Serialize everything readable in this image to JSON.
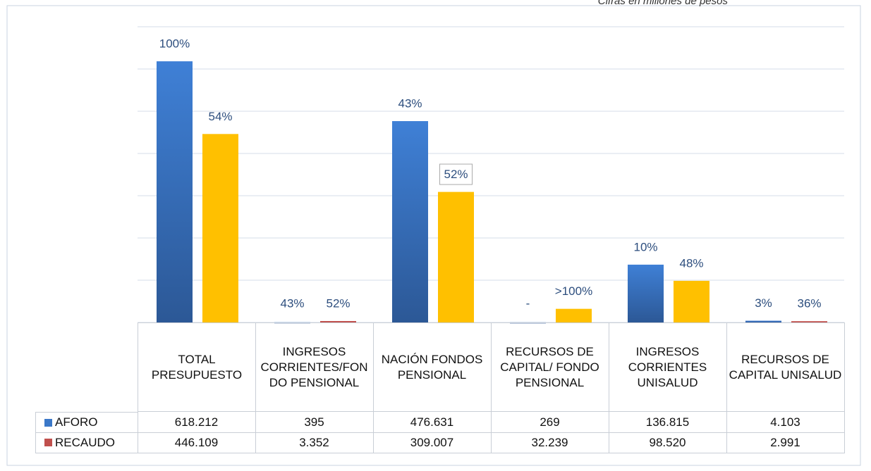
{
  "chart_data": {
    "type": "bar",
    "subtitle": "Cifras en millones de pesos",
    "categories": [
      "TOTAL PRESUPUESTO",
      "INGRESOS CORRIENTES/FONDO PENSIONAL",
      "NACIÓN FONDOS PENSIONAL",
      "RECURSOS DE CAPITAL/ FONDO PENSIONAL",
      "INGRESOS CORRIENTES UNISALUD",
      "RECURSOS DE CAPITAL UNISALUD"
    ],
    "series": [
      {
        "name": "AFORO",
        "color": "#3b78c8",
        "colors": [
          "#3b78c8",
          "#3b78c8",
          "#3b78c8",
          "#3b78c8",
          "#3b78c8",
          "#3b78c8"
        ],
        "values": [
          618212,
          395,
          476631,
          269,
          136815,
          4103
        ],
        "value_labels": [
          "618.212",
          "395",
          "476.631",
          "269",
          "136.815",
          "4.103"
        ],
        "bar_labels": [
          "100%",
          "43%",
          "43%",
          "-",
          "10%",
          "3%"
        ]
      },
      {
        "name": "RECAUDO",
        "color": "#c0504d",
        "colors": [
          "#ffc000",
          "#c0504d",
          "#ffc000",
          "#ffc000",
          "#ffc000",
          "#c0504d"
        ],
        "values": [
          446109,
          3352,
          309007,
          32239,
          98520,
          2991
        ],
        "value_labels": [
          "446.109",
          "3.352",
          "309.007",
          "32.239",
          "98.520",
          "2.991"
        ],
        "bar_labels": [
          "54%",
          "52%",
          "52%",
          ">100%",
          "48%",
          "36%"
        ]
      }
    ],
    "ylim": [
      0,
      700000
    ],
    "yticks": [
      0,
      100000,
      200000,
      300000,
      400000,
      500000,
      600000,
      700000
    ],
    "grid": true
  }
}
